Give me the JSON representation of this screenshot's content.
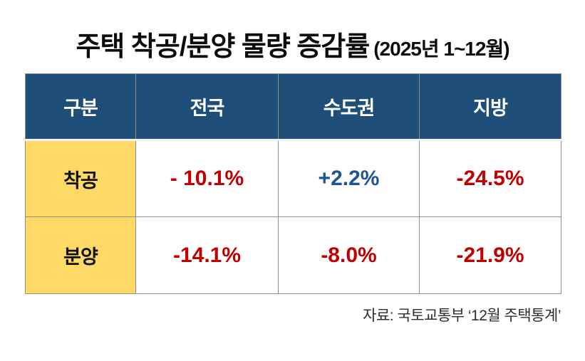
{
  "title": {
    "main": "주택 착공/분양 물량 증감률",
    "period": "(2025년 1~12월)"
  },
  "colors": {
    "header_bg": "#1F4E79",
    "label_bg": "#FFD966",
    "negative": "#C00000",
    "positive": "#1F5493"
  },
  "table": {
    "headers": [
      "구분",
      "전국",
      "수도권",
      "지방"
    ],
    "rows": [
      {
        "label": "착공",
        "values": [
          {
            "text": "- 10.1%",
            "color": "#C00000"
          },
          {
            "text": "+2.2%",
            "color": "#1F5493"
          },
          {
            "text": "-24.5%",
            "color": "#C00000"
          }
        ]
      },
      {
        "label": "분양",
        "values": [
          {
            "text": "-14.1%",
            "color": "#C00000"
          },
          {
            "text": "-8.0%",
            "color": "#C00000"
          },
          {
            "text": "-21.9%",
            "color": "#C00000"
          }
        ]
      }
    ]
  },
  "source": "자료: 국토교통부 ‘12월 주택통계’",
  "chart_data": {
    "type": "table",
    "title": "주택 착공/분양 물량 증감률 (2025년 1~12월)",
    "columns": [
      "구분",
      "전국",
      "수도권",
      "지방"
    ],
    "rows": [
      [
        "착공",
        "- 10.1%",
        "+2.2%",
        "-24.5%"
      ],
      [
        "분양",
        "-14.1%",
        "-8.0%",
        "-21.9%"
      ]
    ],
    "values_numeric": {
      "착공": {
        "전국": -10.1,
        "수도권": 2.2,
        "지방": -24.5
      },
      "분양": {
        "전국": -14.1,
        "수도권": -8.0,
        "지방": -21.9
      }
    },
    "source": "자료: 국토교통부 ‘12월 주택통계’"
  }
}
